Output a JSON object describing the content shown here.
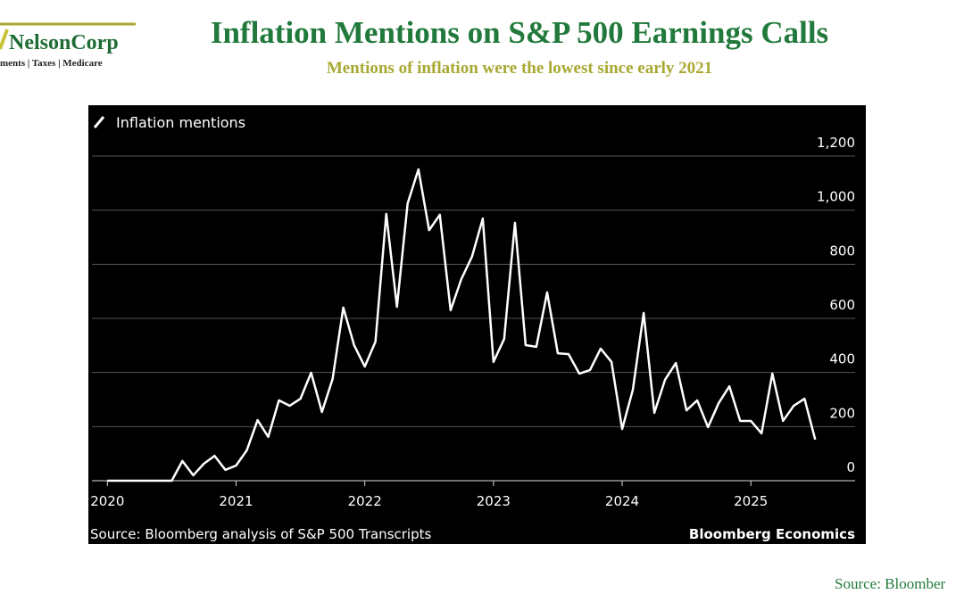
{
  "logo": {
    "name": "NelsonCorp",
    "tagline": "ments | Taxes | Medicare"
  },
  "chart_data": {
    "type": "line",
    "title": "Inflation Mentions on S&P 500 Earnings Calls",
    "subtitle": "Mentions of inflation were the lowest since early 2021",
    "source": "Source: Bloomberg analysis of S&P 500 Transcripts",
    "brand": "Bloomberg Economics",
    "x": [
      2020,
      2020.083,
      2020.167,
      2020.25,
      2020.333,
      2020.417,
      2020.5,
      2020.583,
      2020.667,
      2020.75,
      2020.833,
      2020.917,
      2021,
      2021.083,
      2021.167,
      2021.25,
      2021.333,
      2021.417,
      2021.5,
      2021.583,
      2021.667,
      2021.75,
      2021.833,
      2021.917,
      2022,
      2022.083,
      2022.167,
      2022.25,
      2022.333,
      2022.417,
      2022.5,
      2022.583,
      2022.667,
      2022.75,
      2022.833,
      2022.917,
      2023,
      2023.083,
      2023.167,
      2023.25,
      2023.333,
      2023.417,
      2023.5,
      2023.583,
      2023.667,
      2023.75,
      2023.833,
      2023.917,
      2024,
      2024.083,
      2024.167,
      2024.25,
      2024.333,
      2024.417,
      2024.5,
      2024.583,
      2024.667,
      2024.75,
      2024.833,
      2024.917,
      2025,
      2025.083,
      2025.167,
      2025.25,
      2025.333,
      2025.417,
      2025.5
    ],
    "series": [
      {
        "name": "Inflation mentions",
        "color": "#ffffff",
        "values": [
          0,
          0,
          0,
          0,
          0,
          0,
          0,
          73,
          20,
          63,
          92,
          40,
          56,
          112,
          224,
          162,
          297,
          277,
          303,
          399,
          254,
          376,
          640,
          501,
          422,
          514,
          986,
          643,
          1025,
          1151,
          926,
          983,
          630,
          745,
          828,
          969,
          439,
          524,
          953,
          501,
          495,
          696,
          471,
          468,
          396,
          409,
          488,
          439,
          191,
          336,
          620,
          251,
          373,
          435,
          260,
          297,
          198,
          287,
          349,
          221,
          221,
          175,
          396,
          221,
          277,
          303,
          152
        ]
      }
    ],
    "xlim": [
      2019.88,
      2025.81
    ],
    "xticks": [
      2020,
      2021,
      2022,
      2023,
      2024,
      2025
    ],
    "ylim": [
      0,
      1380
    ],
    "yticks": [
      0,
      200,
      400,
      600,
      800,
      {
        "value": 1000,
        "label": "1,000"
      },
      {
        "value": 1200,
        "label": "1,200"
      }
    ],
    "grid": true
  },
  "footer": {
    "source": "Source: Bloomber"
  }
}
